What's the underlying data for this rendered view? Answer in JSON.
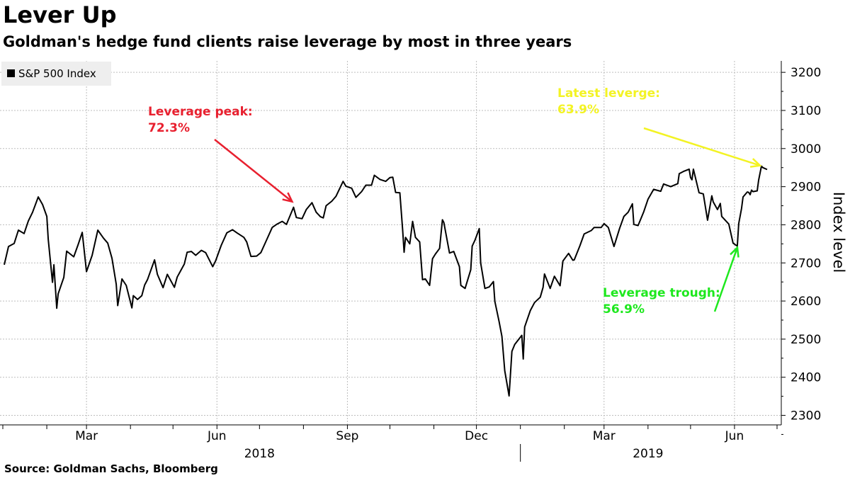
{
  "title": "Lever Up",
  "subtitle": "Goldman's hedge fund clients raise leverage by most in three years",
  "source": "Source: Goldman Sachs, Bloomberg",
  "colors": {
    "line": "#000000",
    "grid": "#bdbdbd",
    "peak": "#e8202f",
    "latest": "#f3f324",
    "trough": "#1ee81e",
    "legend_bg": "#eeeeee"
  },
  "chart_data": {
    "type": "line",
    "title": "Lever Up",
    "subtitle": "Goldman's hedge fund clients raise leverage by most in three years",
    "xlabel": "",
    "ylabel": "Index level",
    "ylim": [
      2275,
      3230
    ],
    "xlim": [
      "2018-01-02",
      "2019-06-14"
    ],
    "y_ticks": [
      2300,
      2400,
      2500,
      2600,
      2700,
      2800,
      2900,
      3000,
      3100,
      3200
    ],
    "grid": true,
    "legend_position": "top-left",
    "x_tick_labels": [
      {
        "label": "Mar",
        "date": "2018-03-01"
      },
      {
        "label": "Jun",
        "date": "2018-06-01"
      },
      {
        "label": "Sep",
        "date": "2018-09-01"
      },
      {
        "label": "Dec",
        "date": "2018-12-01"
      },
      {
        "label": "Mar",
        "date": "2019-03-01"
      },
      {
        "label": "Jun",
        "date": "2019-06-01"
      }
    ],
    "month_ticks": [
      "2018-01-01",
      "2018-02-01",
      "2018-03-01",
      "2018-04-01",
      "2018-05-01",
      "2018-06-01",
      "2018-07-01",
      "2018-08-01",
      "2018-09-01",
      "2018-10-01",
      "2018-11-01",
      "2018-12-01",
      "2019-01-01",
      "2019-02-01",
      "2019-03-01",
      "2019-04-01",
      "2019-05-01",
      "2019-06-01",
      "2019-07-01"
    ],
    "year_labels": [
      {
        "label": "2018",
        "date": "2018-07-01"
      },
      {
        "label": "2019",
        "date": "2019-04-01"
      }
    ],
    "year_divider": "2019-01-01",
    "series": [
      {
        "name": "S&P 500 Index",
        "points": [
          [
            "2018-01-02",
            2695
          ],
          [
            "2018-01-05",
            2743
          ],
          [
            "2018-01-09",
            2751
          ],
          [
            "2018-01-12",
            2786
          ],
          [
            "2018-01-16",
            2777
          ],
          [
            "2018-01-19",
            2810
          ],
          [
            "2018-01-22",
            2833
          ],
          [
            "2018-01-26",
            2873
          ],
          [
            "2018-01-29",
            2853
          ],
          [
            "2018-02-01",
            2822
          ],
          [
            "2018-02-02",
            2762
          ],
          [
            "2018-02-05",
            2649
          ],
          [
            "2018-02-06",
            2695
          ],
          [
            "2018-02-08",
            2581
          ],
          [
            "2018-02-09",
            2619
          ],
          [
            "2018-02-13",
            2662
          ],
          [
            "2018-02-15",
            2731
          ],
          [
            "2018-02-20",
            2716
          ],
          [
            "2018-02-23",
            2747
          ],
          [
            "2018-02-26",
            2780
          ],
          [
            "2018-03-01",
            2677
          ],
          [
            "2018-03-05",
            2720
          ],
          [
            "2018-03-09",
            2786
          ],
          [
            "2018-03-13",
            2765
          ],
          [
            "2018-03-16",
            2752
          ],
          [
            "2018-03-19",
            2712
          ],
          [
            "2018-03-22",
            2644
          ],
          [
            "2018-03-23",
            2588
          ],
          [
            "2018-03-26",
            2658
          ],
          [
            "2018-03-29",
            2641
          ],
          [
            "2018-04-02",
            2582
          ],
          [
            "2018-04-03",
            2614
          ],
          [
            "2018-04-06",
            2604
          ],
          [
            "2018-04-09",
            2614
          ],
          [
            "2018-04-11",
            2642
          ],
          [
            "2018-04-13",
            2656
          ],
          [
            "2018-04-18",
            2708
          ],
          [
            "2018-04-20",
            2670
          ],
          [
            "2018-04-24",
            2635
          ],
          [
            "2018-04-27",
            2670
          ],
          [
            "2018-05-02",
            2636
          ],
          [
            "2018-05-04",
            2663
          ],
          [
            "2018-05-09",
            2697
          ],
          [
            "2018-05-11",
            2728
          ],
          [
            "2018-05-14",
            2730
          ],
          [
            "2018-05-17",
            2720
          ],
          [
            "2018-05-21",
            2733
          ],
          [
            "2018-05-24",
            2727
          ],
          [
            "2018-05-29",
            2690
          ],
          [
            "2018-05-31",
            2705
          ],
          [
            "2018-06-04",
            2746
          ],
          [
            "2018-06-08",
            2779
          ],
          [
            "2018-06-12",
            2787
          ],
          [
            "2018-06-15",
            2779
          ],
          [
            "2018-06-20",
            2767
          ],
          [
            "2018-06-22",
            2755
          ],
          [
            "2018-06-25",
            2717
          ],
          [
            "2018-06-29",
            2718
          ],
          [
            "2018-07-02",
            2727
          ],
          [
            "2018-07-06",
            2760
          ],
          [
            "2018-07-10",
            2793
          ],
          [
            "2018-07-13",
            2801
          ],
          [
            "2018-07-17",
            2809
          ],
          [
            "2018-07-20",
            2801
          ],
          [
            "2018-07-25",
            2846
          ],
          [
            "2018-07-27",
            2819
          ],
          [
            "2018-07-31",
            2816
          ],
          [
            "2018-08-03",
            2840
          ],
          [
            "2018-08-07",
            2858
          ],
          [
            "2018-08-10",
            2833
          ],
          [
            "2018-08-13",
            2821
          ],
          [
            "2018-08-15",
            2818
          ],
          [
            "2018-08-17",
            2850
          ],
          [
            "2018-08-21",
            2862
          ],
          [
            "2018-08-24",
            2875
          ],
          [
            "2018-08-29",
            2914
          ],
          [
            "2018-08-31",
            2901
          ],
          [
            "2018-09-04",
            2896
          ],
          [
            "2018-09-07",
            2872
          ],
          [
            "2018-09-11",
            2887
          ],
          [
            "2018-09-14",
            2904
          ],
          [
            "2018-09-18",
            2904
          ],
          [
            "2018-09-20",
            2930
          ],
          [
            "2018-09-24",
            2919
          ],
          [
            "2018-09-28",
            2914
          ],
          [
            "2018-10-01",
            2924
          ],
          [
            "2018-10-03",
            2925
          ],
          [
            "2018-10-05",
            2885
          ],
          [
            "2018-10-08",
            2884
          ],
          [
            "2018-10-10",
            2785
          ],
          [
            "2018-10-11",
            2728
          ],
          [
            "2018-10-12",
            2767
          ],
          [
            "2018-10-15",
            2750
          ],
          [
            "2018-10-17",
            2809
          ],
          [
            "2018-10-19",
            2767
          ],
          [
            "2018-10-22",
            2755
          ],
          [
            "2018-10-24",
            2656
          ],
          [
            "2018-10-26",
            2658
          ],
          [
            "2018-10-29",
            2641
          ],
          [
            "2018-10-31",
            2711
          ],
          [
            "2018-11-02",
            2723
          ],
          [
            "2018-11-05",
            2738
          ],
          [
            "2018-11-07",
            2813
          ],
          [
            "2018-11-08",
            2806
          ],
          [
            "2018-11-12",
            2726
          ],
          [
            "2018-11-15",
            2730
          ],
          [
            "2018-11-19",
            2690
          ],
          [
            "2018-11-20",
            2641
          ],
          [
            "2018-11-23",
            2633
          ],
          [
            "2018-11-27",
            2682
          ],
          [
            "2018-11-28",
            2744
          ],
          [
            "2018-11-30",
            2760
          ],
          [
            "2018-12-03",
            2790
          ],
          [
            "2018-12-04",
            2700
          ],
          [
            "2018-12-07",
            2633
          ],
          [
            "2018-12-10",
            2637
          ],
          [
            "2018-12-13",
            2651
          ],
          [
            "2018-12-14",
            2599
          ],
          [
            "2018-12-17",
            2546
          ],
          [
            "2018-12-19",
            2507
          ],
          [
            "2018-12-21",
            2417
          ],
          [
            "2018-12-24",
            2351
          ],
          [
            "2018-12-26",
            2468
          ],
          [
            "2018-12-28",
            2486
          ],
          [
            "2019-01-02",
            2510
          ],
          [
            "2019-01-03",
            2448
          ],
          [
            "2019-01-04",
            2532
          ],
          [
            "2019-01-08",
            2575
          ],
          [
            "2019-01-11",
            2596
          ],
          [
            "2019-01-15",
            2610
          ],
          [
            "2019-01-17",
            2636
          ],
          [
            "2019-01-18",
            2671
          ],
          [
            "2019-01-22",
            2633
          ],
          [
            "2019-01-25",
            2665
          ],
          [
            "2019-01-29",
            2640
          ],
          [
            "2019-01-31",
            2705
          ],
          [
            "2019-02-04",
            2725
          ],
          [
            "2019-02-07",
            2707
          ],
          [
            "2019-02-08",
            2708
          ],
          [
            "2019-02-12",
            2745
          ],
          [
            "2019-02-15",
            2776
          ],
          [
            "2019-02-20",
            2785
          ],
          [
            "2019-02-22",
            2793
          ],
          [
            "2019-02-27",
            2793
          ],
          [
            "2019-03-01",
            2803
          ],
          [
            "2019-03-04",
            2793
          ],
          [
            "2019-03-08",
            2743
          ],
          [
            "2019-03-12",
            2791
          ],
          [
            "2019-03-15",
            2822
          ],
          [
            "2019-03-18",
            2833
          ],
          [
            "2019-03-21",
            2855
          ],
          [
            "2019-03-22",
            2801
          ],
          [
            "2019-03-25",
            2798
          ],
          [
            "2019-03-29",
            2834
          ],
          [
            "2019-04-01",
            2867
          ],
          [
            "2019-04-05",
            2893
          ],
          [
            "2019-04-10",
            2888
          ],
          [
            "2019-04-12",
            2907
          ],
          [
            "2019-04-17",
            2900
          ],
          [
            "2019-04-22",
            2908
          ],
          [
            "2019-04-23",
            2934
          ],
          [
            "2019-04-26",
            2940
          ],
          [
            "2019-04-30",
            2946
          ],
          [
            "2019-05-01",
            2924
          ],
          [
            "2019-05-02",
            2918
          ],
          [
            "2019-05-03",
            2946
          ],
          [
            "2019-05-07",
            2884
          ],
          [
            "2019-05-10",
            2881
          ],
          [
            "2019-05-13",
            2812
          ],
          [
            "2019-05-16",
            2876
          ],
          [
            "2019-05-17",
            2860
          ],
          [
            "2019-05-20",
            2840
          ],
          [
            "2019-05-22",
            2856
          ],
          [
            "2019-05-23",
            2822
          ],
          [
            "2019-05-28",
            2802
          ],
          [
            "2019-05-31",
            2752
          ],
          [
            "2019-06-03",
            2744
          ],
          [
            "2019-06-04",
            2803
          ],
          [
            "2019-06-06",
            2843
          ],
          [
            "2019-06-07",
            2873
          ],
          [
            "2019-06-10",
            2886
          ],
          [
            "2019-06-11",
            2885
          ],
          [
            "2019-06-12",
            2879
          ],
          [
            "2019-06-13",
            2891
          ],
          [
            "2019-06-14",
            2887
          ],
          [
            "2019-06-17",
            2889
          ],
          [
            "2019-06-18",
            2917
          ],
          [
            "2019-06-20",
            2954
          ],
          [
            "2019-06-21",
            2950
          ],
          [
            "2019-06-24",
            2945
          ]
        ]
      }
    ],
    "annotations": [
      {
        "lines": [
          "Leverage peak:",
          "72.3%"
        ],
        "target_date": "2018-07-25",
        "target_value": 2846,
        "color_key": "peak"
      },
      {
        "lines": [
          "Latest leverge:",
          "63.9%"
        ],
        "target_date": "2019-06-21",
        "target_value": 2950,
        "color_key": "latest"
      },
      {
        "lines": [
          "Leverage trough:",
          "56.9%"
        ],
        "target_date": "2019-06-03",
        "target_value": 2744,
        "color_key": "trough"
      }
    ]
  }
}
